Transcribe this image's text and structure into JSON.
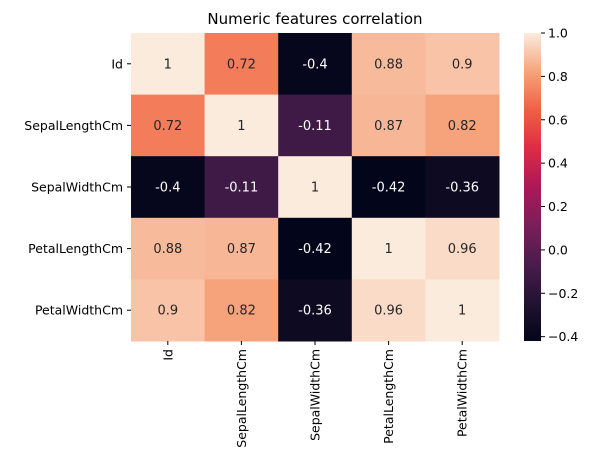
{
  "chart_data": {
    "type": "heatmap",
    "title": "Numeric features correlation",
    "row_labels": [
      "Id",
      "SepalLengthCm",
      "SepalWidthCm",
      "PetalLengthCm",
      "PetalWidthCm"
    ],
    "col_labels": [
      "Id",
      "SepalLengthCm",
      "SepalWidthCm",
      "PetalLengthCm",
      "PetalWidthCm"
    ],
    "values": [
      [
        1,
        0.72,
        -0.4,
        0.88,
        0.9
      ],
      [
        0.72,
        1,
        -0.11,
        0.87,
        0.82
      ],
      [
        -0.4,
        -0.11,
        1,
        -0.42,
        -0.36
      ],
      [
        0.88,
        0.87,
        -0.42,
        1,
        0.96
      ],
      [
        0.9,
        0.82,
        -0.36,
        0.96,
        1
      ]
    ],
    "colorbar": {
      "min": -0.42,
      "max": 1.0,
      "ticks": [
        -0.4,
        -0.2,
        0.0,
        0.2,
        0.4,
        0.6,
        0.8,
        1.0
      ],
      "tick_labels": [
        "−0.4",
        "−0.2",
        "0.0",
        "0.2",
        "0.4",
        "0.6",
        "0.8",
        "1.0"
      ],
      "colormap": "rocket"
    },
    "annotations": true
  }
}
